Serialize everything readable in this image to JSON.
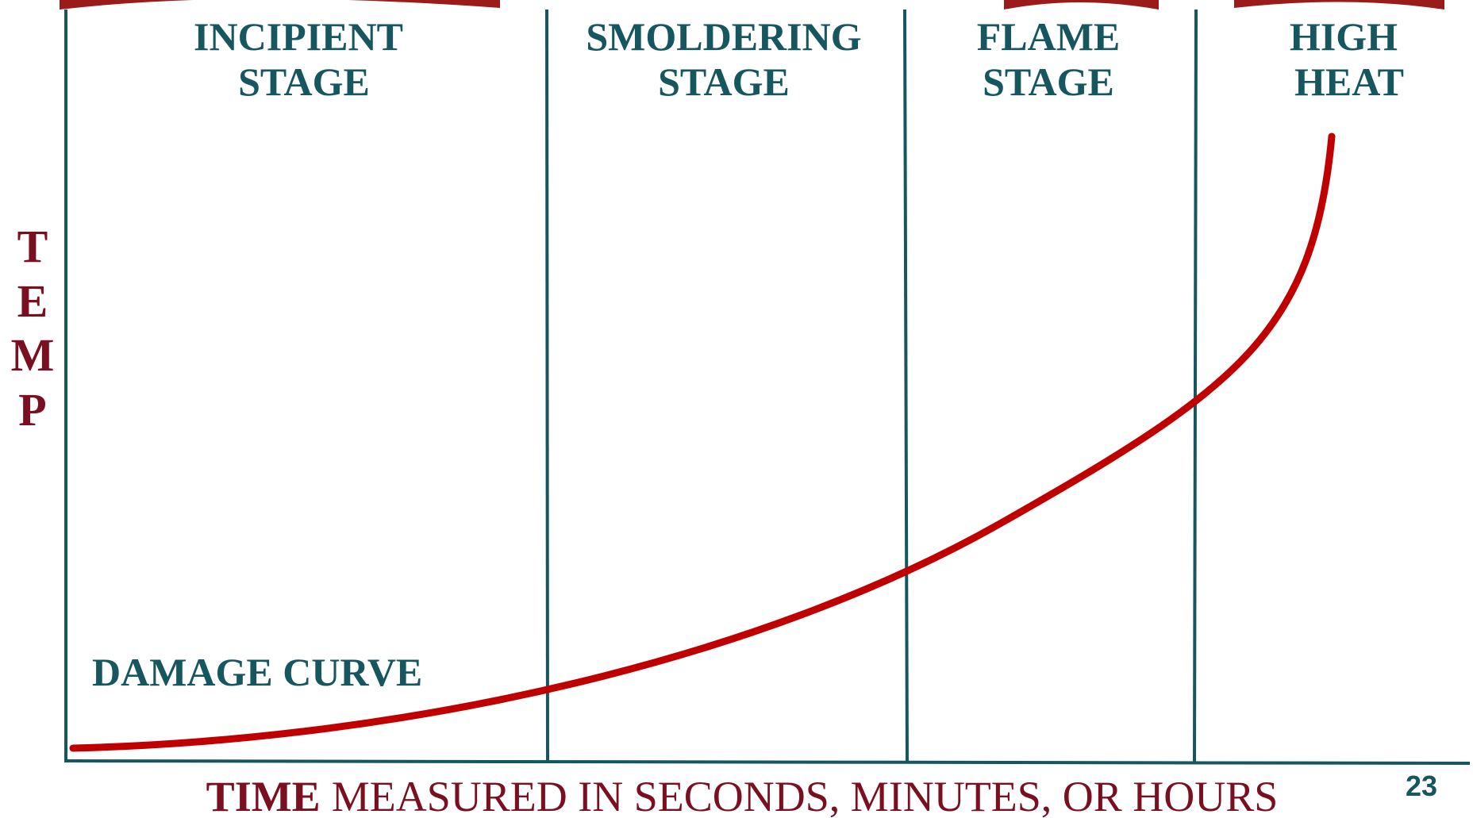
{
  "stages": [
    {
      "lines": [
        "INCIPIENT",
        "STAGE"
      ]
    },
    {
      "lines": [
        "SMOLDERING",
        "STAGE"
      ]
    },
    {
      "lines": [
        "FLAME",
        "STAGE"
      ]
    },
    {
      "lines": [
        "HIGH",
        "HEAT"
      ]
    }
  ],
  "y_axis_label": [
    "T",
    "E",
    "M",
    "P"
  ],
  "x_axis_label": {
    "emphasis": "TIME",
    "text": "MEASURED IN SECONDS, MINUTES, OR HOURS"
  },
  "curve_label": "DAMAGE CURVE",
  "slide_number": "23"
}
